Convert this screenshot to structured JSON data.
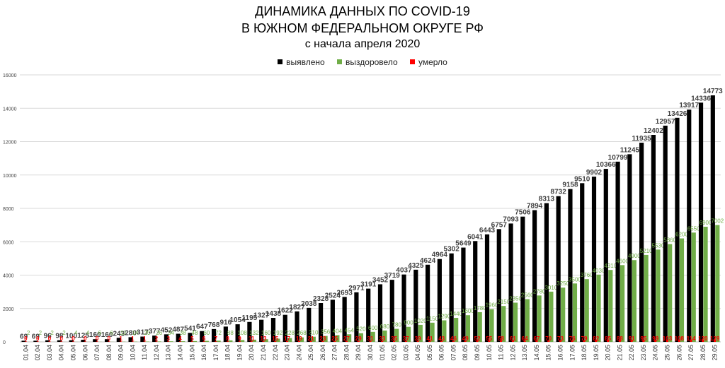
{
  "header": {
    "line1": "ДИНАМИКА ДАННЫХ ПО COVID-19",
    "line2": "В ЮЖНОМ ФЕДЕРАЛЬНОМ ОКРУГЕ РФ",
    "line3": "с начала апреля 2020"
  },
  "colors": {
    "detected": "#000000",
    "recovered": "#70ad47",
    "died": "#ff0000",
    "grid": "#d9d9d9"
  },
  "chart_data": {
    "type": "bar",
    "title": "ДИНАМИКА ДАННЫХ ПО COVID-19 В ЮЖНОМ ФЕДЕРАЛЬНОМ ОКРУГЕ РФ",
    "subtitle": "с начала апреля 2020",
    "ylim": [
      0,
      16000
    ],
    "yticks": [
      0,
      2000,
      4000,
      6000,
      8000,
      10000,
      12000,
      14000,
      16000
    ],
    "legend_position": "top-center",
    "grid": true,
    "categories": [
      "01.04",
      "02.04",
      "03.04",
      "04.04",
      "05.04",
      "06.04",
      "07.04",
      "08.04",
      "09.04",
      "10.04",
      "11.04",
      "12.04",
      "13.04",
      "14.04",
      "15.04",
      "16.04",
      "17.04",
      "18.04",
      "19.04",
      "20.04",
      "21.04",
      "22.04",
      "23.04",
      "24.04",
      "25.04",
      "26.04",
      "27.04",
      "28.04",
      "29.04",
      "30.04",
      "01.05",
      "02.05",
      "03.05",
      "04.05",
      "05.05",
      "06.05",
      "07.05",
      "08.05",
      "09.05",
      "10.05",
      "11.05",
      "12.05",
      "13.05",
      "14.05",
      "15.05",
      "16.05",
      "17.05",
      "18.05",
      "19.05",
      "20.05",
      "21.05",
      "22.05",
      "23.05",
      "24.05",
      "25.05",
      "26.05",
      "27.05",
      "28.05",
      "29.05"
    ],
    "series": [
      {
        "name": "выявлено",
        "color": "#000000",
        "values": [
          69,
          69,
          96,
          98,
          100,
          125,
          160,
          160,
          243,
          280,
          317,
          377,
          452,
          487,
          541,
          647,
          768,
          916,
          1054,
          1195,
          1327,
          1438,
          1622,
          1827,
          2038,
          2328,
          2524,
          2693,
          2971,
          3191,
          3452,
          3719,
          4037,
          4325,
          4624,
          4964,
          5302,
          5649,
          6041,
          6443,
          6757,
          7093,
          7506,
          7894,
          8313,
          8732,
          9158,
          9510,
          9902,
          10366,
          10799,
          11245,
          11935,
          12402,
          12957,
          13426,
          13917,
          14336,
          14773
        ]
      },
      {
        "name": "выздоровело",
        "color": "#70ad47",
        "values": [
          2,
          2,
          2,
          2,
          4,
          4,
          6,
          6,
          12,
          14,
          20,
          26,
          34,
          38,
          48,
          60,
          72,
          88,
          108,
          132,
          160,
          192,
          228,
          268,
          310,
          356,
          404,
          454,
          520,
          600,
          680,
          780,
          900,
          1020,
          1150,
          1290,
          1440,
          1600,
          1780,
          1960,
          2150,
          2350,
          2560,
          2780,
          3010,
          3250,
          3500,
          3760,
          4030,
          4310,
          4600,
          4900,
          5210,
          5530,
          5860,
          6200,
          6550,
          6900,
          7002
        ]
      },
      {
        "name": "умерло",
        "color": "#ff0000",
        "values": [
          0,
          0,
          0,
          0,
          0,
          0,
          0,
          0,
          1,
          1,
          1,
          2,
          3,
          4,
          5,
          6,
          7,
          8,
          9,
          11,
          13,
          15,
          17,
          19,
          21,
          23,
          25,
          27,
          29,
          31,
          33,
          35,
          37,
          39,
          41,
          43,
          46,
          49,
          52,
          55,
          58,
          61,
          64,
          67,
          70,
          73,
          76,
          79,
          82,
          85,
          88,
          91,
          95,
          99,
          103,
          108,
          114,
          120,
          129
        ]
      }
    ]
  }
}
